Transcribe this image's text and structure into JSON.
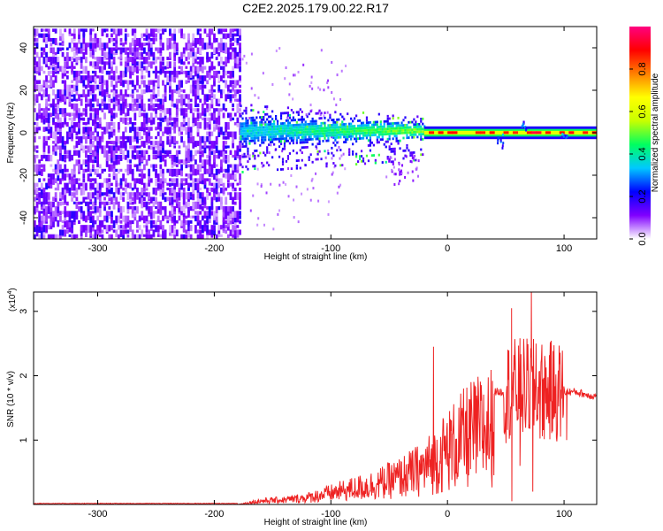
{
  "title": "C2E2.2025.179.00.22.R17",
  "chart_data": [
    {
      "type": "heatmap",
      "xlabel": "Height of straight line (km)",
      "ylabel": "Frequency (Hz)",
      "xlim": [
        -355,
        128
      ],
      "ylim": [
        -50,
        50
      ],
      "x_ticks": [
        -300,
        -200,
        -100,
        0,
        100
      ],
      "y_ticks": [
        40,
        20,
        0,
        -20,
        -40
      ],
      "colorbar": {
        "label": "Normalized spectral amplitude",
        "range": [
          0,
          1
        ],
        "ticks": [
          0.0,
          0.2,
          0.4,
          0.6,
          0.8
        ],
        "colors": [
          "#ffffff",
          "#8000ff",
          "#0000ff",
          "#00c8ff",
          "#00ff60",
          "#c8ff00",
          "#ffff00",
          "#ff8000",
          "#ff0000",
          "#ff0080"
        ]
      },
      "regions": [
        {
          "x": [
            -355,
            -178
          ],
          "f": [
            -50,
            50
          ],
          "level": 0.12,
          "description": "noise"
        },
        {
          "x": [
            -178,
            -20
          ],
          "f": [
            -12,
            10
          ],
          "level": 0.3
        },
        {
          "x": [
            -20,
            128
          ],
          "f": [
            -2,
            2
          ],
          "level": 0.75
        }
      ]
    },
    {
      "type": "line",
      "xlabel": "Height of straight line (km)",
      "ylabel": "SNR (10 * v/v)",
      "y_multiplier": "(x10",
      "y_multiplier_exp": "4",
      "y_multiplier_close": ")",
      "xlim": [
        -355,
        128
      ],
      "ylim": [
        0,
        3.3
      ],
      "x_ticks": [
        -300,
        -200,
        -100,
        0,
        100
      ],
      "y_ticks": [
        1,
        2,
        3
      ],
      "series_color": "#ee2222",
      "envelope": {
        "x": [
          -355,
          -180,
          -160,
          -140,
          -120,
          -100,
          -80,
          -60,
          -40,
          -20,
          0,
          20,
          40,
          50,
          60,
          70,
          80,
          90,
          100,
          110,
          120,
          128
        ],
        "y": [
          0.0,
          0.0,
          0.08,
          0.1,
          0.15,
          0.25,
          0.35,
          0.45,
          0.6,
          0.8,
          1.2,
          1.55,
          1.75,
          1.75,
          1.8,
          1.8,
          1.75,
          1.75,
          1.75,
          1.75,
          1.7,
          1.68
        ]
      },
      "spikes": [
        {
          "x": -12,
          "y": 2.45
        },
        {
          "x": 55,
          "y": 3.05
        },
        {
          "x": 72,
          "y": 3.3
        },
        {
          "x": 76,
          "y": 2.5
        },
        {
          "x": 88,
          "y": 2.3
        }
      ],
      "dips": [
        {
          "x": 55,
          "y": 0.05
        },
        {
          "x": 62,
          "y": 0.6
        },
        {
          "x": 73,
          "y": 0.2
        },
        {
          "x": 102,
          "y": 1.0
        }
      ]
    }
  ]
}
